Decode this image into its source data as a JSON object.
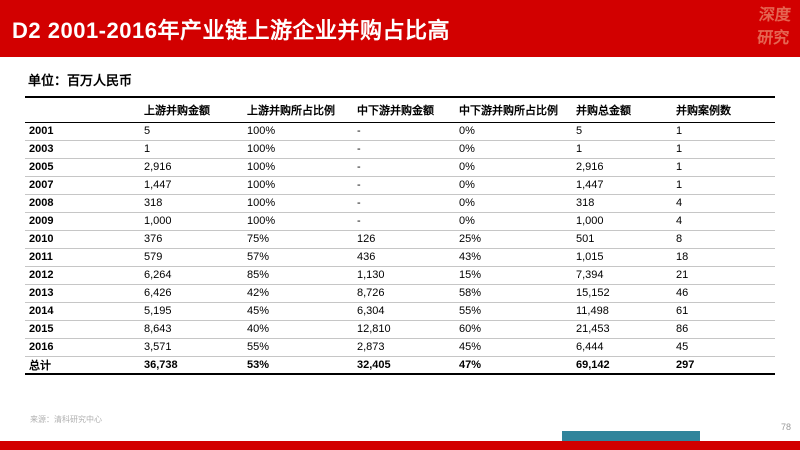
{
  "header": {
    "title": "D2 2001-2016年产业链上游企业并购占比高",
    "logo": {
      "line1": "深度",
      "line2": "研究"
    }
  },
  "unit_label": "单位：百万人民币",
  "table": {
    "columns": [
      "",
      "上游并购金额",
      "上游并购所占比例",
      "中下游并购金额",
      "中下游并购所占比例",
      "并购总金额",
      "并购案例数"
    ],
    "rows": [
      [
        "2001",
        "5",
        "100%",
        "-",
        "0%",
        "5",
        "1"
      ],
      [
        "2003",
        "1",
        "100%",
        "-",
        "0%",
        "1",
        "1"
      ],
      [
        "2005",
        "2,916",
        "100%",
        "-",
        "0%",
        "2,916",
        "1"
      ],
      [
        "2007",
        "1,447",
        "100%",
        "-",
        "0%",
        "1,447",
        "1"
      ],
      [
        "2008",
        "318",
        "100%",
        "-",
        "0%",
        "318",
        "4"
      ],
      [
        "2009",
        "1,000",
        "100%",
        "-",
        "0%",
        "1,000",
        "4"
      ],
      [
        "2010",
        "376",
        "75%",
        "126",
        "25%",
        "501",
        "8"
      ],
      [
        "2011",
        "579",
        "57%",
        "436",
        "43%",
        "1,015",
        "18"
      ],
      [
        "2012",
        "6,264",
        "85%",
        "1,130",
        "15%",
        "7,394",
        "21"
      ],
      [
        "2013",
        "6,426",
        "42%",
        "8,726",
        "58%",
        "15,152",
        "46"
      ],
      [
        "2014",
        "5,195",
        "45%",
        "6,304",
        "55%",
        "11,498",
        "61"
      ],
      [
        "2015",
        "8,643",
        "40%",
        "12,810",
        "60%",
        "21,453",
        "86"
      ],
      [
        "2016",
        "3,571",
        "55%",
        "2,873",
        "45%",
        "6,444",
        "45"
      ],
      [
        "总计",
        "36,738",
        "53%",
        "32,405",
        "47%",
        "69,142",
        "297"
      ]
    ]
  },
  "footer": {
    "source": "来源：清科研究中心",
    "page_number": "78"
  },
  "colors": {
    "header_red": "#d20000",
    "accent_teal": "#31849b",
    "logo_salmon": "#e8705b"
  }
}
